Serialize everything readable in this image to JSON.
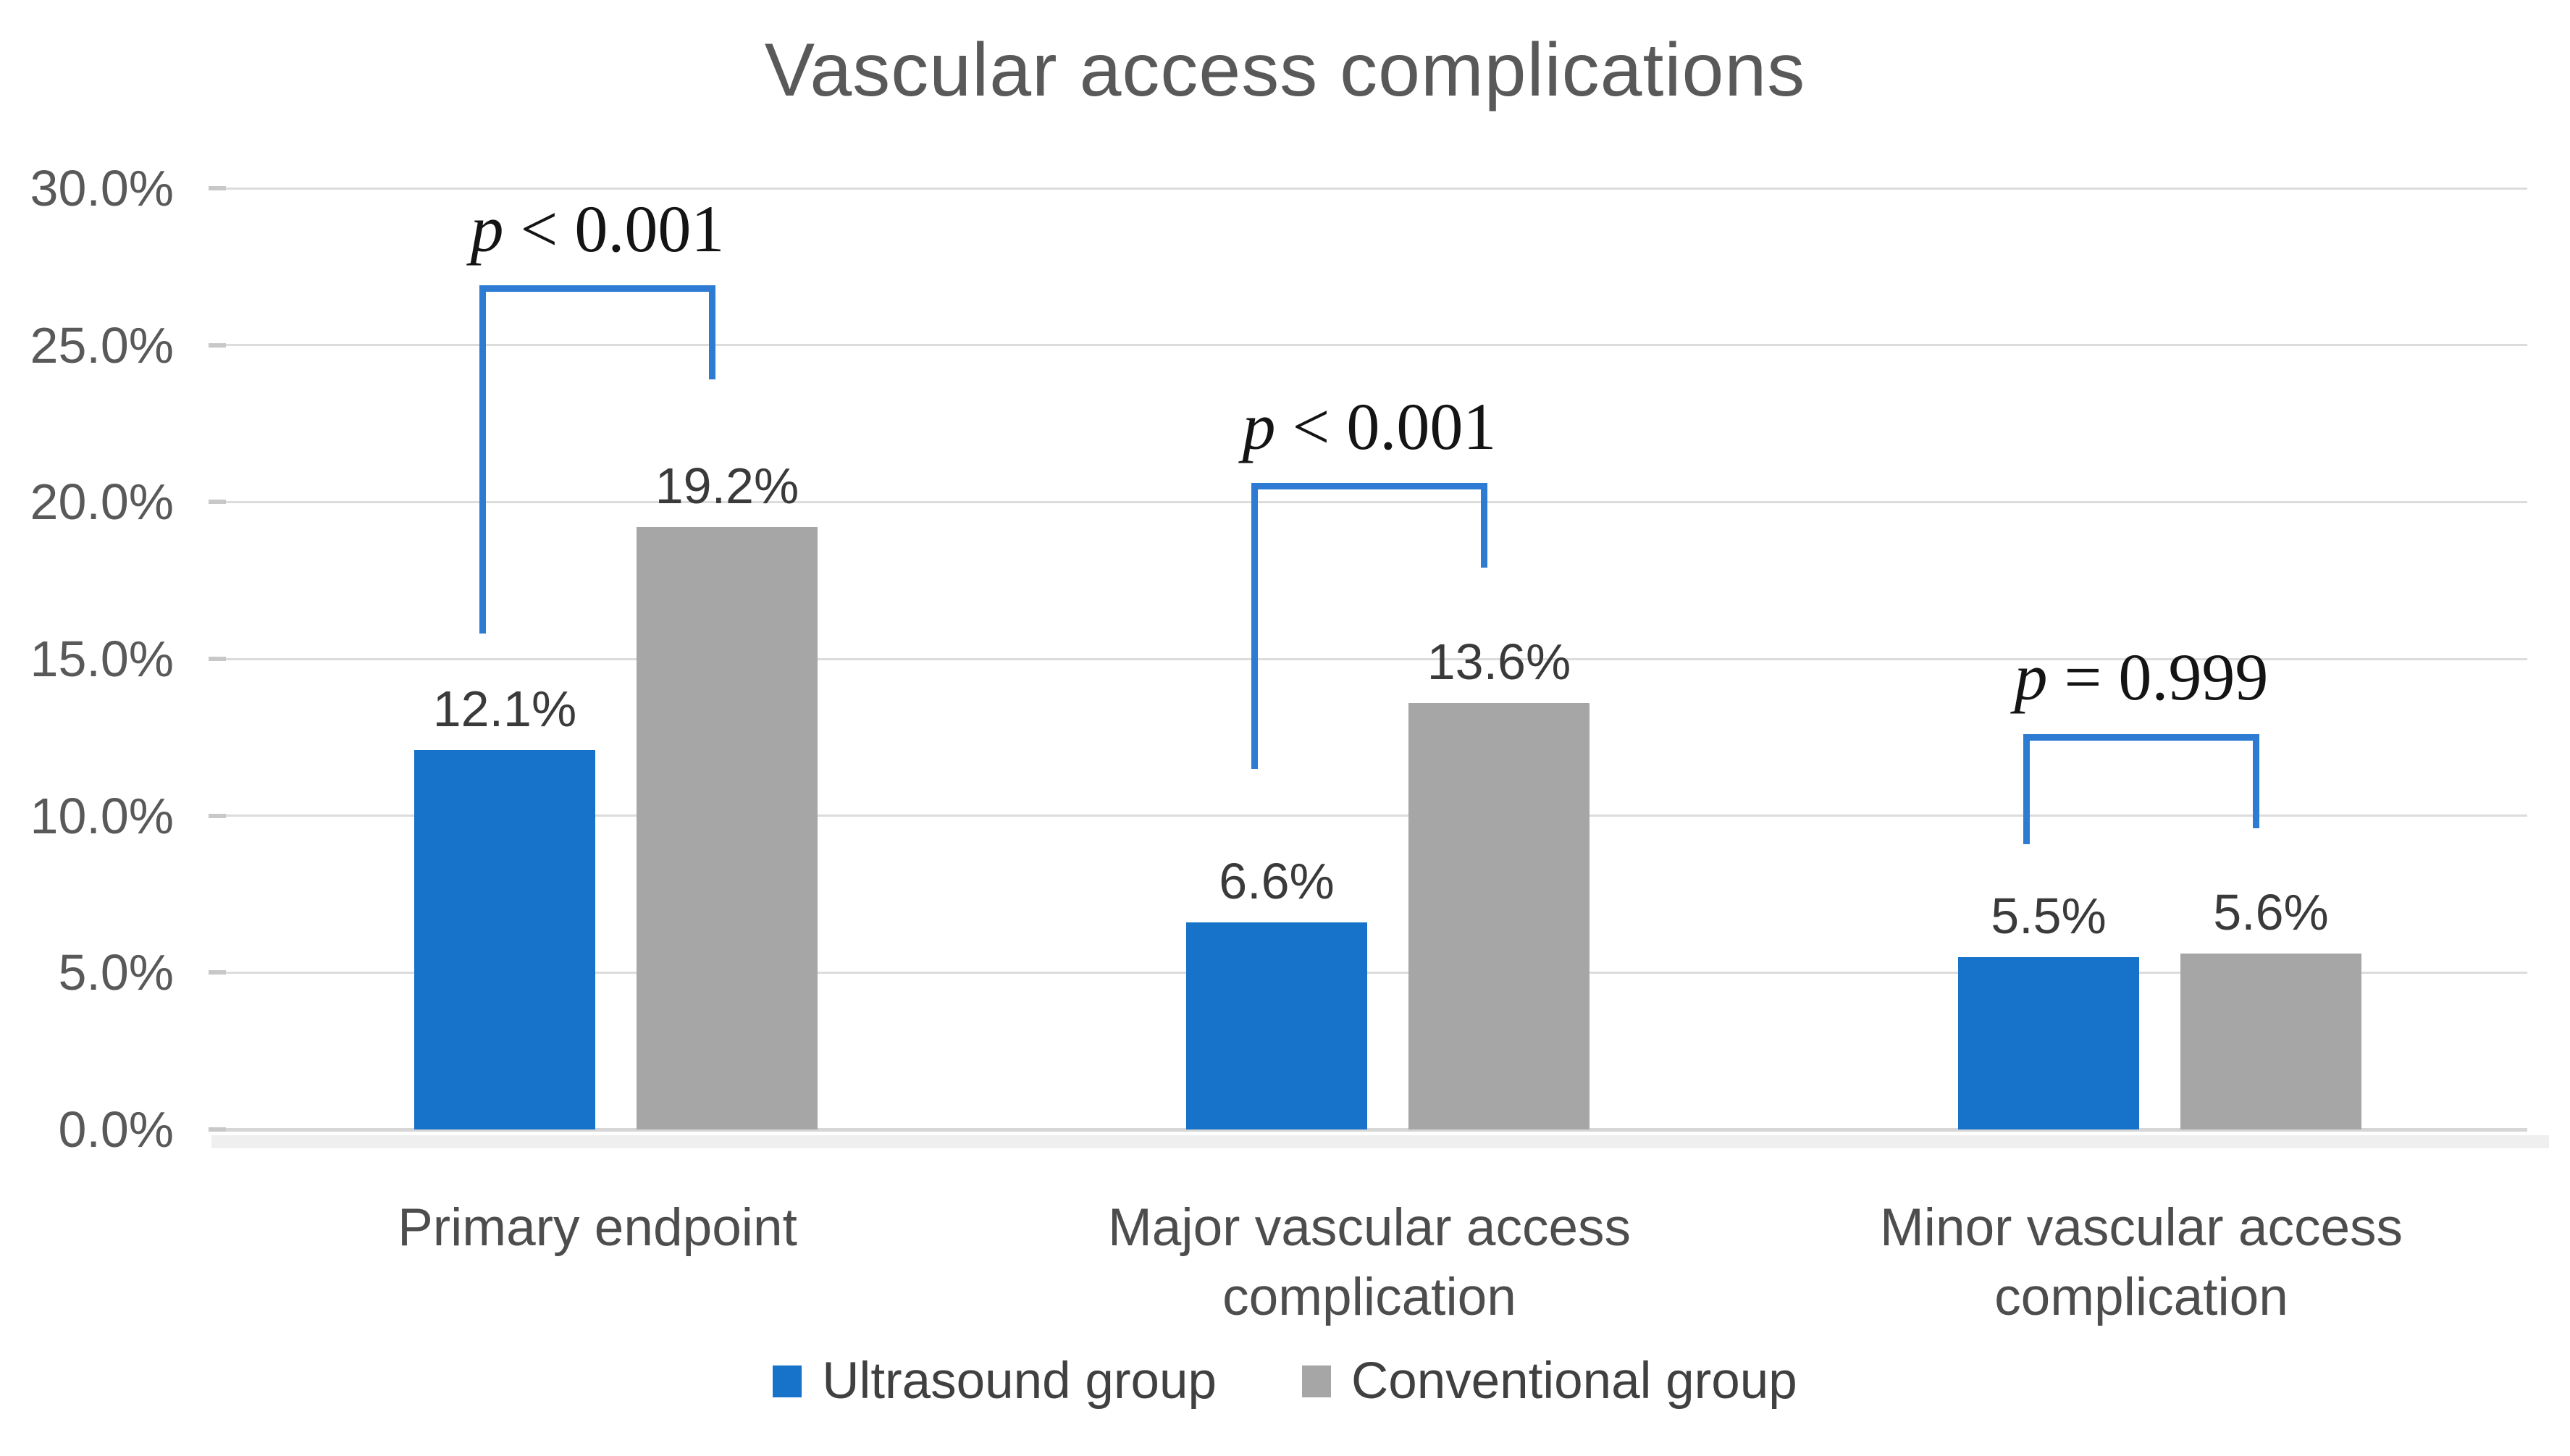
{
  "title": "Vascular access complications",
  "colors": {
    "series_blue": "#1772C9",
    "series_gray": "#A6A6A6",
    "bracket_blue": "#2E7BD4",
    "gridline": "#DCDCDC",
    "axis_line": "#D6D6D6",
    "axis_shadow": "#EFEFEF",
    "tick_nub": "#C8C8C8",
    "title_text": "#595959",
    "tick_text": "#595959",
    "category_text": "#4D4D4D",
    "value_text": "#3A3A3A",
    "p_value_text": "#141414"
  },
  "chart_data": {
    "type": "bar",
    "title": "Vascular access complications",
    "categories": [
      "Primary endpoint",
      "Major vascular access complication",
      "Minor vascular access complication"
    ],
    "category_lines": [
      [
        "Primary endpoint"
      ],
      [
        "Major vascular access",
        "complication"
      ],
      [
        "Minor vascular access",
        "complication"
      ]
    ],
    "series": [
      {
        "name": "Ultrasound group",
        "color": "#1772C9",
        "values": [
          12.1,
          6.6,
          5.5
        ],
        "value_labels": [
          "12.1%",
          "6.6%",
          "5.5%"
        ]
      },
      {
        "name": "Conventional group",
        "color": "#A6A6A6",
        "values": [
          19.2,
          13.6,
          5.6
        ],
        "value_labels": [
          "19.2%",
          "13.6%",
          "5.6%"
        ]
      }
    ],
    "ylim": [
      0,
      30
    ],
    "yticks": [
      {
        "value": 30,
        "label": "30.0%"
      },
      {
        "value": 25,
        "label": "25.0%"
      },
      {
        "value": 20,
        "label": "20.0%"
      },
      {
        "value": 15,
        "label": "15.0%"
      },
      {
        "value": 10,
        "label": "10.0%"
      },
      {
        "value": 5,
        "label": "5.0%"
      },
      {
        "value": 0,
        "label": "0.0%"
      }
    ],
    "grid": true,
    "legend_position": "bottom",
    "significance_brackets": [
      {
        "category_index": 0,
        "label": "p < 0.001",
        "bar_level_pct": 26.8,
        "left_drop_to_pct": 15.9,
        "right_drop_to_pct": 24.0
      },
      {
        "category_index": 1,
        "label": "p < 0.001",
        "bar_level_pct": 20.5,
        "left_drop_to_pct": 11.6,
        "right_drop_to_pct": 18.0
      },
      {
        "category_index": 2,
        "label": "p = 0.999",
        "bar_level_pct": 12.5,
        "left_drop_to_pct": 9.2,
        "right_drop_to_pct": 9.7
      }
    ]
  },
  "legend": {
    "items": [
      {
        "label": "Ultrasound group",
        "color": "#1772C9"
      },
      {
        "label": "Conventional group",
        "color": "#A6A6A6"
      }
    ]
  }
}
